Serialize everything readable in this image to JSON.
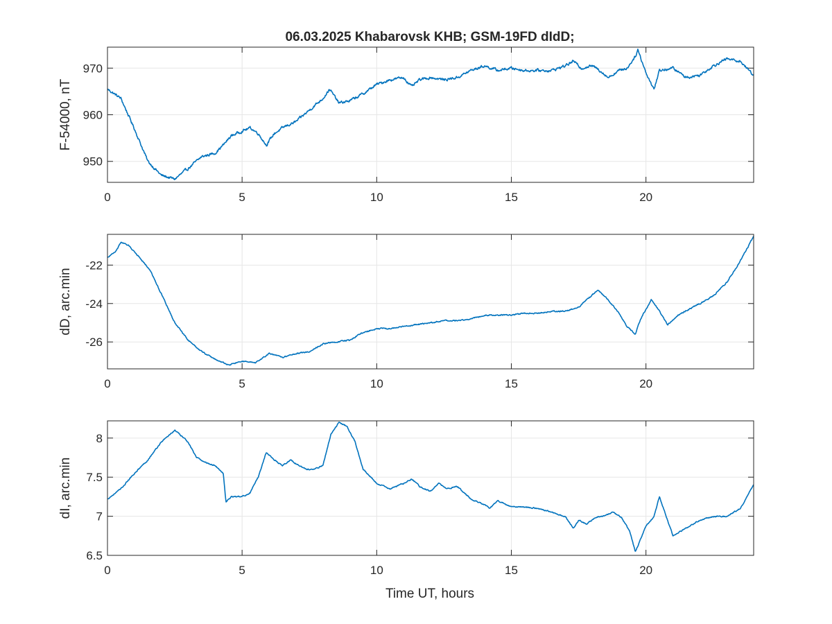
{
  "figure": {
    "title": "06.03.2025  Khabarovsk KHB; GSM-19FD dIdD;",
    "xlabel": "Time UT, hours",
    "line_color": "#0072BD",
    "grid_color": "#e6e6e6",
    "axis_color": "#262626"
  },
  "chart_data": [
    {
      "type": "line",
      "ylabel": "F-54000, nT",
      "xlim": [
        0,
        24
      ],
      "ylim": [
        945.5,
        974.5
      ],
      "xticks": [
        0,
        5,
        10,
        15,
        20
      ],
      "xtick_labels": [
        "0",
        "5",
        "10",
        "15",
        "20"
      ],
      "yticks": [
        950,
        960,
        970
      ],
      "ytick_labels": [
        "950",
        "960",
        "970"
      ],
      "grid": true,
      "noise": 0.45,
      "x": [
        0,
        0.5,
        1,
        1.5,
        2,
        2.5,
        3,
        3.5,
        4,
        4.3,
        4.6,
        5,
        5.3,
        5.6,
        5.9,
        6.2,
        6.6,
        7,
        7.5,
        8,
        8.25,
        8.6,
        9,
        9.5,
        10,
        10.5,
        11,
        11.3,
        11.6,
        12,
        12.5,
        13,
        13.5,
        14,
        14.5,
        15,
        15.5,
        16,
        16.5,
        17,
        17.3,
        17.6,
        18,
        18.3,
        18.6,
        19,
        19.3,
        19.6,
        19.7,
        20,
        20.3,
        20.5,
        21,
        21.5,
        22,
        22.5,
        23,
        23.5,
        24
      ],
      "y": [
        965.5,
        963.5,
        957,
        950,
        947,
        946.2,
        948.5,
        951,
        951.8,
        953.5,
        955.5,
        956.5,
        957.2,
        956,
        953.5,
        956,
        957.5,
        958.5,
        961,
        963.5,
        965.5,
        962.5,
        963,
        964.5,
        966.5,
        967.5,
        968,
        966,
        967.5,
        968,
        967.5,
        968,
        969.5,
        970.5,
        969.5,
        970,
        969.5,
        969.5,
        969.5,
        970.5,
        971.5,
        970,
        970.5,
        969.5,
        968,
        969.5,
        970,
        972.5,
        974,
        969,
        965.5,
        969.5,
        970,
        968,
        968.5,
        970.5,
        972,
        971.5,
        968.5
      ]
    },
    {
      "type": "line",
      "ylabel": "dD, arc.min",
      "xlim": [
        0,
        24
      ],
      "ylim": [
        -27.4,
        -20.4
      ],
      "xticks": [
        0,
        5,
        10,
        15,
        20
      ],
      "xtick_labels": [
        "0",
        "5",
        "10",
        "15",
        "20"
      ],
      "yticks": [
        -26,
        -24,
        -22
      ],
      "ytick_labels": [
        "-26",
        "-24",
        "-22"
      ],
      "grid": true,
      "noise": 0.05,
      "x": [
        0,
        0.3,
        0.5,
        0.8,
        1.2,
        1.6,
        2,
        2.5,
        3,
        3.5,
        4,
        4.5,
        5,
        5.5,
        6,
        6.5,
        7,
        7.5,
        8,
        8.5,
        9,
        9.5,
        10,
        10.5,
        11,
        11.5,
        12,
        12.5,
        13,
        13.5,
        14,
        14.5,
        15,
        15.5,
        16,
        16.5,
        17,
        17.5,
        17.8,
        18.2,
        18.6,
        19,
        19.3,
        19.6,
        19.8,
        20,
        20.2,
        20.5,
        20.8,
        21.2,
        21.6,
        22,
        22.5,
        23,
        23.5,
        24
      ],
      "y": [
        -21.6,
        -21.3,
        -20.8,
        -21.0,
        -21.6,
        -22.3,
        -23.5,
        -25.0,
        -25.9,
        -26.5,
        -26.9,
        -27.2,
        -27.0,
        -27.1,
        -26.6,
        -26.8,
        -26.6,
        -26.5,
        -26.1,
        -26.0,
        -25.9,
        -25.5,
        -25.3,
        -25.3,
        -25.2,
        -25.1,
        -25.0,
        -24.9,
        -24.9,
        -24.8,
        -24.6,
        -24.6,
        -24.6,
        -24.5,
        -24.5,
        -24.4,
        -24.4,
        -24.2,
        -23.8,
        -23.3,
        -23.8,
        -24.5,
        -25.2,
        -25.6,
        -24.8,
        -24.3,
        -23.8,
        -24.4,
        -25.1,
        -24.6,
        -24.3,
        -24.0,
        -23.6,
        -22.9,
        -21.8,
        -20.5
      ]
    },
    {
      "type": "line",
      "ylabel": "dI, arc.min",
      "xlim": [
        0,
        24
      ],
      "ylim": [
        6.5,
        8.22
      ],
      "xticks": [
        0,
        5,
        10,
        15,
        20
      ],
      "xtick_labels": [
        "0",
        "5",
        "10",
        "15",
        "20"
      ],
      "yticks": [
        6.5,
        7,
        7.5,
        8
      ],
      "ytick_labels": [
        "6.5",
        "7",
        "7.5",
        "8"
      ],
      "grid": true,
      "noise": 0.012,
      "x": [
        0,
        0.5,
        1,
        1.5,
        2,
        2.5,
        3,
        3.3,
        3.7,
        4,
        4.3,
        4.4,
        4.6,
        5,
        5.3,
        5.6,
        5.9,
        6.2,
        6.5,
        6.8,
        7.1,
        7.4,
        7.7,
        8,
        8.3,
        8.6,
        8.9,
        9.2,
        9.5,
        10,
        10.5,
        11,
        11.3,
        11.6,
        12,
        12.3,
        12.6,
        13,
        13.5,
        14,
        14.2,
        14.5,
        15,
        15.5,
        16,
        16.5,
        17,
        17.3,
        17.5,
        17.8,
        18.1,
        18.4,
        18.8,
        19.1,
        19.4,
        19.6,
        19.7,
        20,
        20.3,
        20.5,
        20.7,
        21,
        21.5,
        22,
        22.5,
        23,
        23.5,
        24
      ],
      "y": [
        7.22,
        7.35,
        7.55,
        7.72,
        7.95,
        8.1,
        7.95,
        7.75,
        7.68,
        7.65,
        7.55,
        7.18,
        7.25,
        7.25,
        7.3,
        7.5,
        7.82,
        7.72,
        7.65,
        7.72,
        7.65,
        7.6,
        7.6,
        7.65,
        8.05,
        8.2,
        8.15,
        7.95,
        7.6,
        7.42,
        7.35,
        7.42,
        7.48,
        7.38,
        7.32,
        7.42,
        7.35,
        7.38,
        7.22,
        7.15,
        7.1,
        7.2,
        7.12,
        7.12,
        7.1,
        7.05,
        7.0,
        6.85,
        6.95,
        6.9,
        6.98,
        7.0,
        7.05,
        6.98,
        6.8,
        6.55,
        6.62,
        6.88,
        7.0,
        7.25,
        7.05,
        6.75,
        6.85,
        6.95,
        7.0,
        7.0,
        7.1,
        7.4
      ]
    }
  ]
}
